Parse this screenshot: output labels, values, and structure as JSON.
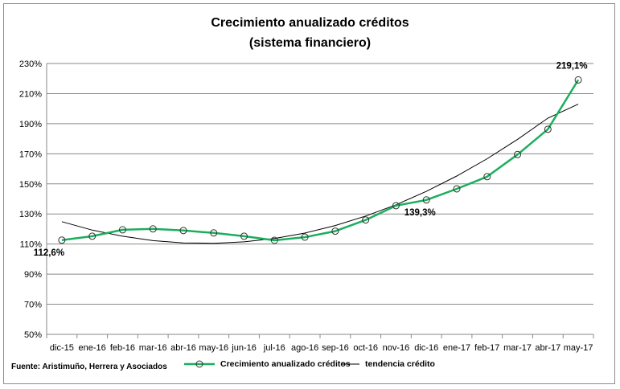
{
  "chart_data": {
    "type": "line",
    "title": "Crecimiento anualizado créditos",
    "subtitle": "(sistema financiero)",
    "categories": [
      "dic-15",
      "ene-16",
      "feb-16",
      "mar-16",
      "abr-16",
      "may-16",
      "jun-16",
      "jul-16",
      "ago-16",
      "sep-16",
      "oct-16",
      "nov-16",
      "dic-16",
      "ene-17",
      "feb-17",
      "mar-17",
      "abr-17",
      "may-17"
    ],
    "series": [
      {
        "name": "Crecimiento anualizado créditos",
        "color": "#1aaf5d",
        "marker": "circle",
        "values": [
          112.6,
          115.2,
          119.5,
          120.1,
          119.0,
          117.4,
          115.2,
          112.5,
          114.6,
          118.6,
          126.0,
          135.5,
          139.3,
          146.7,
          154.8,
          169.5,
          186.3,
          219.1
        ]
      },
      {
        "name": "tendencia crédito",
        "color": "#000000",
        "values": [
          124.9,
          119.3,
          115.2,
          112.3,
          110.8,
          110.5,
          111.5,
          113.7,
          117.3,
          122.3,
          128.6,
          136.1,
          145.0,
          155.2,
          166.7,
          179.6,
          193.7,
          203.0
        ]
      }
    ],
    "ylim": [
      50,
      230
    ],
    "yticks": [
      "50%",
      "70%",
      "90%",
      "110%",
      "130%",
      "150%",
      "170%",
      "190%",
      "210%",
      "230%"
    ],
    "ytick_values": [
      50,
      70,
      90,
      110,
      130,
      150,
      170,
      190,
      210,
      230
    ],
    "grid": true,
    "legend_position": "bottom",
    "annotations": [
      {
        "text": "112,6%",
        "index": 0
      },
      {
        "text": "139,3%",
        "index": 12
      },
      {
        "text": "219,1%",
        "index": 17
      }
    ]
  },
  "source": "Fuente: Aristimuño, Herrera y Asociados",
  "legend": {
    "series1": "Crecimiento anualizado créditos",
    "series2": "tendencia crédito"
  }
}
